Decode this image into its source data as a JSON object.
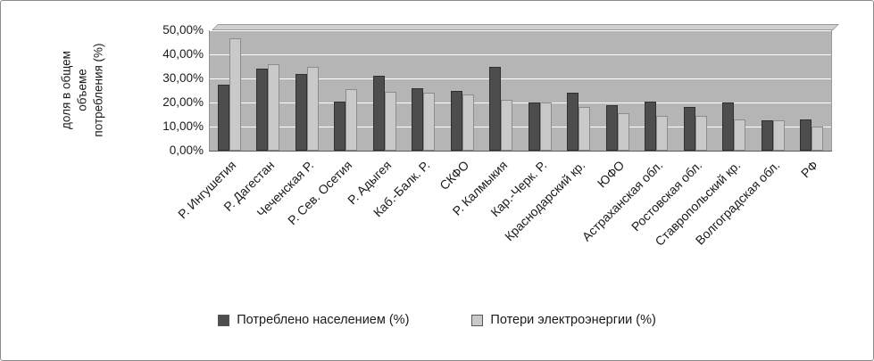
{
  "chart_data": {
    "type": "bar",
    "title": "",
    "ylabel_lines": [
      "доля в общем",
      "объеме",
      "потребления (%)"
    ],
    "ylim": [
      0,
      50
    ],
    "yticks": [
      "0,00%",
      "10,00%",
      "20,00%",
      "30,00%",
      "40,00%",
      "50,00%"
    ],
    "grid": true,
    "legend_position": "bottom",
    "plot_bg": "#b5b5b5",
    "categories": [
      "Р. Ингушетия",
      "Р. Дагестан",
      "Чеченская Р.",
      "Р. Сев. Осетия",
      "Р. Адыгея",
      "Каб.-Балк. Р.",
      "СКФО",
      "Р. Калмыкия",
      "Кар.-Черк. Р.",
      "Краснодарский кр.",
      "ЮФО",
      "Астраханская обл.",
      "Ростовская обл.",
      "Ставропольский кр.",
      "Волгоградская обл.",
      "РФ"
    ],
    "series": [
      {
        "name": "Потреблено населением (%)",
        "color": "#4d4d4d",
        "border": "#2f2f2f",
        "values": [
          27.5,
          34,
          32,
          20.5,
          31,
          26,
          25,
          35,
          20,
          24,
          19,
          20.5,
          18,
          20,
          12.5,
          13
        ]
      },
      {
        "name": "Потери электроэнергии (%)",
        "color": "#c9c9c9",
        "border": "#8c8c8c",
        "values": [
          46.5,
          36,
          35,
          25.5,
          24.5,
          24,
          23.5,
          21,
          20,
          18,
          15.5,
          14.5,
          14.5,
          13,
          12.5,
          10
        ]
      }
    ]
  }
}
